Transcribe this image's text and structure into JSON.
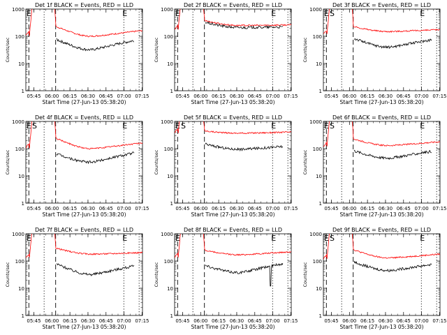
{
  "chart_data": [
    {
      "type": "line",
      "title": "Det 1f BLACK = Events, RED = LLD",
      "events": {
        "start": 0.98,
        "mid": 8.5,
        "end": 58
      },
      "levels": {
        "red_pre": 110,
        "red_post": 230,
        "red_min": 100,
        "red_end": 150,
        "black_post": 78,
        "black_min": 32,
        "black_end": 70
      },
      "flags": {
        "s": false,
        "end_spike": false
      }
    },
    {
      "type": "line",
      "title": "Det 2f BLACK = Events, RED = LLD",
      "events": {
        "start": 0.98,
        "mid": 8.5,
        "end": 58
      },
      "levels": {
        "red_pre": 180,
        "red_post": 380,
        "red_min": 250,
        "red_end": 260,
        "black_post": 330,
        "black_min": 210,
        "black_end": 220
      },
      "flags": {
        "s": false,
        "end_spike": false
      }
    },
    {
      "type": "line",
      "title": "Det 3f BLACK = Events, RED = LLD",
      "events": {
        "start": 0.98,
        "mid": 8.5,
        "end": 58
      },
      "levels": {
        "red_pre": 120,
        "red_post": 230,
        "red_min": 150,
        "red_end": 170,
        "black_post": 85,
        "black_min": 40,
        "black_end": 75
      },
      "flags": {
        "s": true,
        "end_spike": false
      }
    },
    {
      "type": "line",
      "title": "Det 4f BLACK = Events, RED = LLD",
      "events": {
        "start": 0.98,
        "mid": 8.5,
        "end": 58
      },
      "levels": {
        "red_pre": 110,
        "red_post": 240,
        "red_min": 100,
        "red_end": 150,
        "black_post": 65,
        "black_min": 32,
        "black_end": 70
      },
      "flags": {
        "s": true,
        "end_spike": false
      }
    },
    {
      "type": "line",
      "title": "Det 5f BLACK = Events, RED = LLD",
      "events": {
        "start": 0.98,
        "mid": 8.5,
        "end": 58
      },
      "levels": {
        "red_pre": 380,
        "red_post": 450,
        "red_min": 370,
        "red_end": 400,
        "black_post": 150,
        "black_min": 95,
        "black_end": 120
      },
      "flags": {
        "s": true,
        "end_spike": false
      }
    },
    {
      "type": "line",
      "title": "Det 6f BLACK = Events, RED = LLD",
      "events": {
        "start": 0.98,
        "mid": 8.5,
        "end": 58
      },
      "levels": {
        "red_pre": 120,
        "red_post": 230,
        "red_min": 130,
        "red_end": 170,
        "black_post": 85,
        "black_min": 45,
        "black_end": 80
      },
      "flags": {
        "s": true,
        "end_spike": false
      }
    },
    {
      "type": "line",
      "title": "Det 7f BLACK = Events, RED = LLD",
      "events": {
        "start": 0.98,
        "mid": 8.5,
        "end": 58
      },
      "levels": {
        "red_pre": 130,
        "red_post": 300,
        "red_min": 180,
        "red_end": 200,
        "black_post": 80,
        "black_min": 32,
        "black_end": 65
      },
      "flags": {
        "s": false,
        "end_spike": false
      }
    },
    {
      "type": "line",
      "title": "Det 8f BLACK = Events, RED = LLD",
      "events": {
        "start": 0.98,
        "mid": 8.5,
        "end": 58
      },
      "levels": {
        "red_pre": 140,
        "red_post": 250,
        "red_min": 170,
        "red_end": 210,
        "black_post": 70,
        "black_min": 38,
        "black_end": 80
      },
      "flags": {
        "s": false,
        "end_spike": true
      }
    },
    {
      "type": "line",
      "title": "Det 9f BLACK = Events, RED = LLD",
      "events": {
        "start": 0.98,
        "mid": 8.5,
        "end": 58
      },
      "levels": {
        "red_pre": 120,
        "red_post": 260,
        "red_min": 130,
        "red_end": 170,
        "black_post": 95,
        "black_min": 45,
        "black_end": 75
      },
      "flags": {
        "s": true,
        "end_spike": false
      }
    }
  ],
  "shared": {
    "xlabel": "Start Time (27-Jun-13 05:38:20)",
    "ylabel": "Counts/sec",
    "xticks": [
      "05:45",
      "06:00",
      "06:15",
      "06:30",
      "06:45",
      "07:00",
      "07:15"
    ],
    "yticks": [
      "1",
      "10",
      "100",
      "1000"
    ],
    "xlim_minutes": [
      0,
      97
    ],
    "ylim": [
      1,
      1000
    ],
    "yscale": "log",
    "letter_e": "E",
    "letter_s": "S",
    "colors": {
      "events": "#000000",
      "lld": "#ff0000"
    }
  }
}
